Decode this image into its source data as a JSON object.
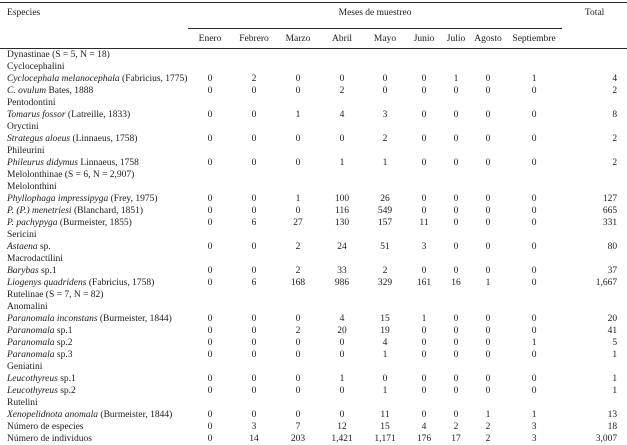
{
  "table": {
    "headers": {
      "especies": "Especies",
      "meses": "Meses de muestreo",
      "total": "Total"
    },
    "months": [
      "Enero",
      "Febrero",
      "Marzo",
      "Abril",
      "Mayo",
      "Junio",
      "Julio",
      "Agosto",
      "Septiembre"
    ],
    "rows": [
      {
        "t": "g",
        "l": "Dynastinae (S = 5, N = 18)"
      },
      {
        "t": "g",
        "l": "Cyclocephalini"
      },
      {
        "t": "s",
        "n": "Cyclocephala melanocephala",
        "a": "(Fabricius, 1775)",
        "v": [
          "0",
          "2",
          "0",
          "0",
          "0",
          "0",
          "1",
          "0",
          "1"
        ],
        "tot": "4"
      },
      {
        "t": "s",
        "n": "C. ovulum",
        "a": "Bates, 1888",
        "v": [
          "0",
          "0",
          "0",
          "2",
          "0",
          "0",
          "0",
          "0",
          "0"
        ],
        "tot": "2"
      },
      {
        "t": "g",
        "l": "Pentodontini"
      },
      {
        "t": "s",
        "n": "Tomarus fossor",
        "a": "(Latreille, 1833)",
        "v": [
          "0",
          "0",
          "1",
          "4",
          "3",
          "0",
          "0",
          "0",
          "0"
        ],
        "tot": "8"
      },
      {
        "t": "g",
        "l": "Oryctini"
      },
      {
        "t": "s",
        "n": "Strategus aloeus",
        "a": "(Linnaeus, 1758)",
        "v": [
          "0",
          "0",
          "0",
          "0",
          "2",
          "0",
          "0",
          "0",
          "0"
        ],
        "tot": "2"
      },
      {
        "t": "g",
        "l": "Phileurini"
      },
      {
        "t": "s",
        "n": "Phileurus didymus",
        "a": "Linnaeus, 1758",
        "v": [
          "0",
          "0",
          "0",
          "1",
          "1",
          "0",
          "0",
          "0",
          "0"
        ],
        "tot": "2"
      },
      {
        "t": "g",
        "l": "Melolonthinae (S = 6, N = 2,907)"
      },
      {
        "t": "g",
        "l": "Melolonthini"
      },
      {
        "t": "s",
        "n": "Phyllophaga impressipyga",
        "a": "(Frey, 1975)",
        "v": [
          "0",
          "0",
          "1",
          "100",
          "26",
          "0",
          "0",
          "0",
          "0"
        ],
        "tot": "127"
      },
      {
        "t": "s",
        "n": "P. (P.) menetriesi",
        "a": "(Blanchard, 1851)",
        "v": [
          "0",
          "0",
          "0",
          "116",
          "549",
          "0",
          "0",
          "0",
          "0"
        ],
        "tot": "665"
      },
      {
        "t": "s",
        "n": "P. pachypyga",
        "a": "(Burmeister, 1855)",
        "v": [
          "0",
          "6",
          "27",
          "130",
          "157",
          "11",
          "0",
          "0",
          "0"
        ],
        "tot": "331"
      },
      {
        "t": "g",
        "l": "Sericini"
      },
      {
        "t": "s",
        "n": "Astaena",
        "a": "sp.",
        "v": [
          "0",
          "0",
          "2",
          "24",
          "51",
          "3",
          "0",
          "0",
          "0"
        ],
        "tot": "80"
      },
      {
        "t": "g",
        "l": "Macrodactilini"
      },
      {
        "t": "s",
        "n": "Barybas",
        "a": "sp.1",
        "v": [
          "0",
          "0",
          "2",
          "33",
          "2",
          "0",
          "0",
          "0",
          "0"
        ],
        "tot": "37"
      },
      {
        "t": "s",
        "n": "Liogenys quadridens",
        "a": "(Fabricius, 1758)",
        "v": [
          "0",
          "6",
          "168",
          "986",
          "329",
          "161",
          "16",
          "1",
          "0"
        ],
        "tot": "1,667"
      },
      {
        "t": "g",
        "l": "Rutelinae (S = 7, N = 82)"
      },
      {
        "t": "g",
        "l": "Anomalini"
      },
      {
        "t": "s",
        "n": "Paranomala inconstans",
        "a": "(Burmeister, 1844)",
        "v": [
          "0",
          "0",
          "0",
          "4",
          "15",
          "1",
          "0",
          "0",
          "0"
        ],
        "tot": "20"
      },
      {
        "t": "s",
        "n": "Paranomala",
        "a": "sp.1",
        "v": [
          "0",
          "0",
          "2",
          "20",
          "19",
          "0",
          "0",
          "0",
          "0"
        ],
        "tot": "41"
      },
      {
        "t": "s",
        "n": "Paranomala",
        "a": "sp.2",
        "v": [
          "0",
          "0",
          "0",
          "0",
          "4",
          "0",
          "0",
          "0",
          "1"
        ],
        "tot": "5"
      },
      {
        "t": "s",
        "n": "Paranomala",
        "a": "sp.3",
        "v": [
          "0",
          "0",
          "0",
          "0",
          "1",
          "0",
          "0",
          "0",
          "0"
        ],
        "tot": "1"
      },
      {
        "t": "g",
        "l": "Geniatini"
      },
      {
        "t": "s",
        "n": "Leucothyreus",
        "a": "sp.1",
        "v": [
          "0",
          "0",
          "0",
          "1",
          "0",
          "0",
          "0",
          "0",
          "0"
        ],
        "tot": "1"
      },
      {
        "t": "s",
        "n": "Leucothyreus",
        "a": "sp.2",
        "v": [
          "0",
          "0",
          "0",
          "0",
          "1",
          "0",
          "0",
          "0",
          "0"
        ],
        "tot": "1"
      },
      {
        "t": "g",
        "l": "Rutelini"
      },
      {
        "t": "s",
        "n": "Xenopelidnota anomala",
        "a": "(Burmeister, 1844)",
        "v": [
          "0",
          "0",
          "0",
          "0",
          "11",
          "0",
          "0",
          "1",
          "1"
        ],
        "tot": "13"
      },
      {
        "t": "r",
        "l": "Número de especies",
        "v": [
          "0",
          "3",
          "7",
          "12",
          "15",
          "4",
          "2",
          "2",
          "3"
        ],
        "tot": "18"
      },
      {
        "t": "r",
        "l": "Número de individuos",
        "v": [
          "0",
          "14",
          "203",
          "1,421",
          "1,171",
          "176",
          "17",
          "2",
          "3"
        ],
        "tot": "3,007"
      }
    ]
  }
}
